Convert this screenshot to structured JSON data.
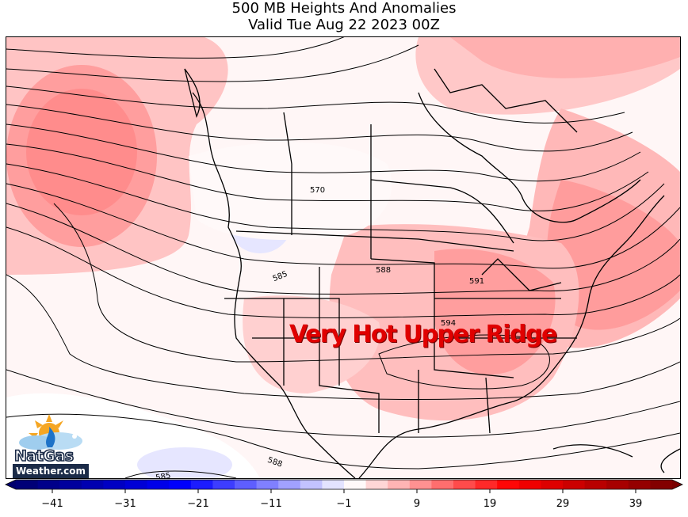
{
  "title": {
    "line1": "500 MB Heights And Anomalies",
    "line2": "Valid Tue Aug 22 2023 00Z"
  },
  "annotation": "Very Hot Upper Ridge",
  "contour_labels": [
    "570",
    "585",
    "588",
    "591",
    "594",
    "588",
    "585"
  ],
  "colorbar": {
    "ticks": [
      "−41",
      "−31",
      "−21",
      "−11",
      "−1",
      "9",
      "19",
      "29",
      "39"
    ],
    "tick_values": [
      -41,
      -31,
      -21,
      -11,
      -1,
      9,
      19,
      29,
      39
    ],
    "range": [
      -46,
      44
    ],
    "colors": {
      "deep_negative": "#00006e",
      "negative": "#0000ff",
      "neutral": "#ffffff",
      "positive": "#ff0000",
      "deep_positive": "#7a0000"
    }
  },
  "logo": {
    "line1": "NatGas",
    "line2": "Weather.com",
    "icon": "sun-cloud-flame-icon"
  }
}
